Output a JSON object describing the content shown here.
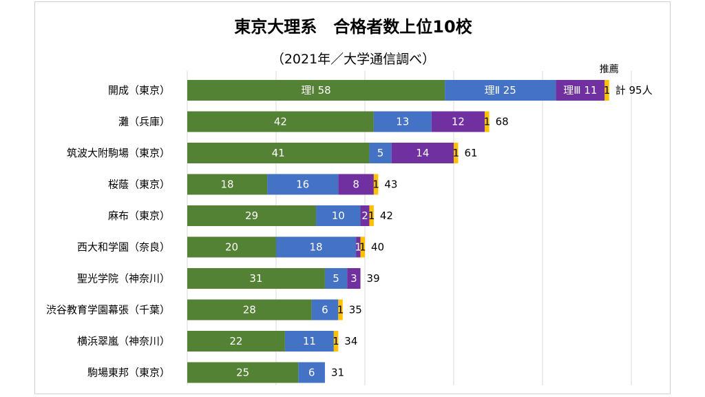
{
  "chart_data": {
    "type": "bar",
    "orientation": "horizontal",
    "stacked": true,
    "title": "東京大理系　合格者数上位10校",
    "subtitle": "（2021年／大学通信調べ）",
    "legend_note": "推薦",
    "categories": [
      "開成（東京）",
      "灘（兵庫）",
      "筑波大附駒場（東京）",
      "桜蔭（東京）",
      "麻布（東京）",
      "西大和学園（奈良）",
      "聖光学院（神奈川）",
      "渋谷教育学園幕張（千葉）",
      "横浜翠嵐（神奈川）",
      "駒場東邦（東京）"
    ],
    "series": [
      {
        "name": "理Ⅰ",
        "color": "#548235",
        "values": [
          58,
          42,
          41,
          18,
          29,
          20,
          31,
          28,
          22,
          25
        ]
      },
      {
        "name": "理Ⅱ",
        "color": "#4472c4",
        "values": [
          25,
          13,
          5,
          16,
          10,
          18,
          5,
          6,
          11,
          6
        ]
      },
      {
        "name": "理Ⅲ",
        "color": "#7030a0",
        "values": [
          11,
          12,
          14,
          8,
          2,
          1,
          3,
          0,
          0,
          0
        ]
      },
      {
        "name": "推薦",
        "color": "#ffc000",
        "values": [
          1,
          1,
          1,
          1,
          1,
          1,
          0,
          1,
          1,
          0
        ]
      }
    ],
    "segment_labels": {
      "first_row": [
        "理Ⅰ 58",
        "理Ⅱ 25",
        "理Ⅲ 11",
        "1"
      ]
    },
    "totals": [
      "計 95人",
      "68",
      "61",
      "43",
      "42",
      "40",
      "39",
      "35",
      "34",
      "31"
    ],
    "xlim": [
      0,
      100
    ],
    "grid": true
  }
}
